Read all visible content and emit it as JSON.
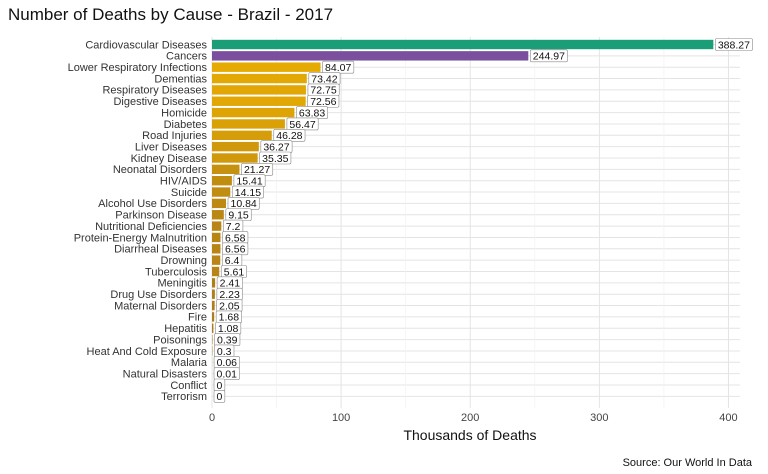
{
  "chart_data": {
    "type": "bar",
    "orientation": "horizontal",
    "title": "Number of Deaths by Cause - Brazil - 2017",
    "xlabel": "Thousands of Deaths",
    "ylabel": "",
    "caption": "Source: Our World In Data",
    "xlim": [
      0,
      400
    ],
    "xticks": [
      0,
      100,
      200,
      300,
      400
    ],
    "grid": true,
    "legend": "none",
    "categories": [
      "Cardiovascular Diseases",
      "Cancers",
      "Lower Respiratory Infections",
      "Dementias",
      "Respiratory Diseases",
      "Digestive Diseases",
      "Homicide",
      "Diabetes",
      "Road Injuries",
      "Liver Diseases",
      "Kidney Disease",
      "Neonatal Disorders",
      "HIV/AIDS",
      "Suicide",
      "Alcohol Use Disorders",
      "Parkinson Disease",
      "Nutritional Deficiencies",
      "Protein-Energy Malnutrition",
      "Diarrheal Diseases",
      "Drowning",
      "Tuberculosis",
      "Meningitis",
      "Drug Use Disorders",
      "Maternal Disorders",
      "Fire",
      "Hepatitis",
      "Poisonings",
      "Heat And Cold Exposure",
      "Malaria",
      "Natural Disasters",
      "Conflict",
      "Terrorism"
    ],
    "values": [
      388.27,
      244.97,
      84.07,
      73.42,
      72.75,
      72.56,
      63.83,
      56.47,
      46.28,
      36.27,
      35.35,
      21.27,
      15.41,
      14.15,
      10.84,
      9.15,
      7.2,
      6.58,
      6.56,
      6.4,
      5.61,
      2.41,
      2.23,
      2.05,
      1.68,
      1.08,
      0.39,
      0.3,
      0.06,
      0.01,
      0,
      0
    ],
    "value_labels": [
      "388.27",
      "244.97",
      "84.07",
      "73.42",
      "72.75",
      "72.56",
      "63.83",
      "56.47",
      "46.28",
      "36.27",
      "35.35",
      "21.27",
      "15.41",
      "14.15",
      "10.84",
      "9.15",
      "7.2",
      "6.58",
      "6.56",
      "6.4",
      "5.61",
      "2.41",
      "2.23",
      "2.05",
      "1.68",
      "1.08",
      "0.39",
      "0.3",
      "0.06",
      "0.01",
      "0",
      "0"
    ],
    "colors": {
      "top1": "#1b9e77",
      "top2": "#7b4f9e",
      "gradient_high": "#e6ab02",
      "gradient_low": "#a6761d"
    }
  }
}
